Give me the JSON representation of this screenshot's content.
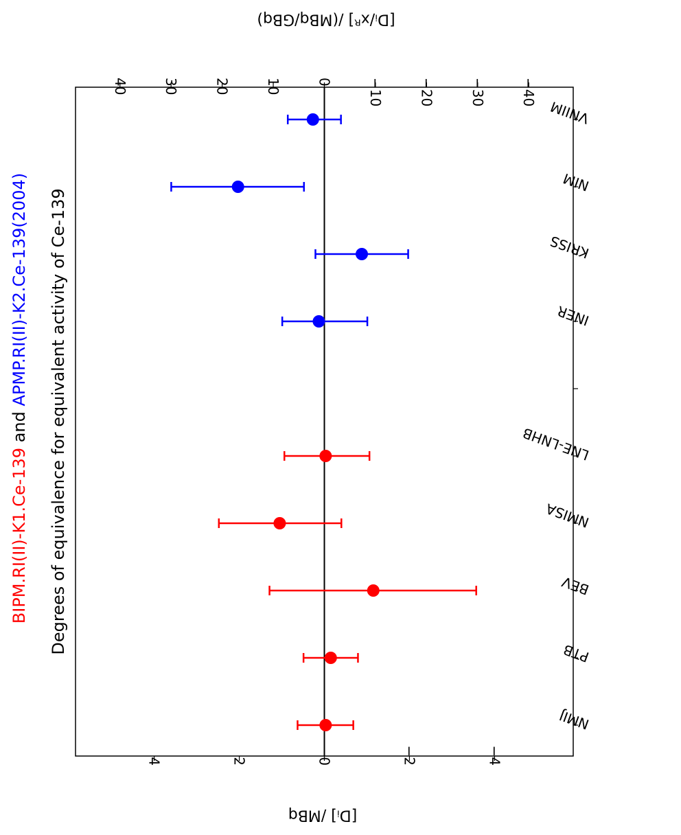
{
  "chart_data": {
    "type": "scatter",
    "title_line1": {
      "part1": "BIPM.RI(II)-K1.Ce-139",
      "part2": " and ",
      "part3": "APMP.RI(II)-K2.Ce-139(2004)"
    },
    "title_line2": "Degrees of equivalence for equivalent activity of Ce-139",
    "xlabel_bottom": "[Dᵢ] /MBq",
    "xlabel_top": "[Dᵢ/xᴿ] /(MBq/GBq)",
    "xlim_bottom": [
      5.85,
      -5.85
    ],
    "xticks_bottom": [
      4,
      2,
      0,
      -2,
      -4
    ],
    "xticklabels_bottom": [
      "4",
      "2",
      "0",
      "−2",
      "−4"
    ],
    "xlim_top": [
      48.7,
      -48.7
    ],
    "xticks_top": [
      40,
      30,
      20,
      10,
      0,
      -10,
      -20,
      -30,
      -40
    ],
    "xticklabels_top": [
      "40",
      "30",
      "20",
      "10",
      "0",
      "−10",
      "−20",
      "−30",
      "−40"
    ],
    "categories": [
      "VNIIM",
      "NIM",
      "KRISS",
      "INER",
      "",
      "LNE-LNHB",
      "NMISA",
      "BEV",
      "PTB",
      "NMIJ"
    ],
    "series": [
      {
        "color": "#0000ff",
        "points": [
          {
            "category": "VNIIM",
            "value": 0.27,
            "err_minus": 0.66,
            "err_plus": 0.59
          },
          {
            "category": "NIM",
            "value": 2.03,
            "err_minus": 1.55,
            "err_plus": 1.57
          },
          {
            "category": "KRISS",
            "value": -0.88,
            "err_minus": 1.09,
            "err_plus": 1.09
          },
          {
            "category": "INER",
            "value": 0.13,
            "err_minus": 1.14,
            "err_plus": 0.86
          }
        ]
      },
      {
        "color": "#ff0000",
        "points": [
          {
            "category": "LNE-LNHB",
            "value": -0.03,
            "err_minus": 1.03,
            "err_plus": 0.97
          },
          {
            "category": "NMISA",
            "value": 1.05,
            "err_minus": 1.45,
            "err_plus": 1.43
          },
          {
            "category": "BEV",
            "value": -1.15,
            "err_minus": 2.42,
            "err_plus": 2.44
          },
          {
            "category": "PTB",
            "value": -0.15,
            "err_minus": 0.64,
            "err_plus": 0.64
          },
          {
            "category": "NMIJ",
            "value": -0.03,
            "err_minus": 0.65,
            "err_plus": 0.66
          }
        ]
      }
    ],
    "reference_line": 0,
    "grid": false,
    "orientation": "rotated-90-clockwise"
  }
}
